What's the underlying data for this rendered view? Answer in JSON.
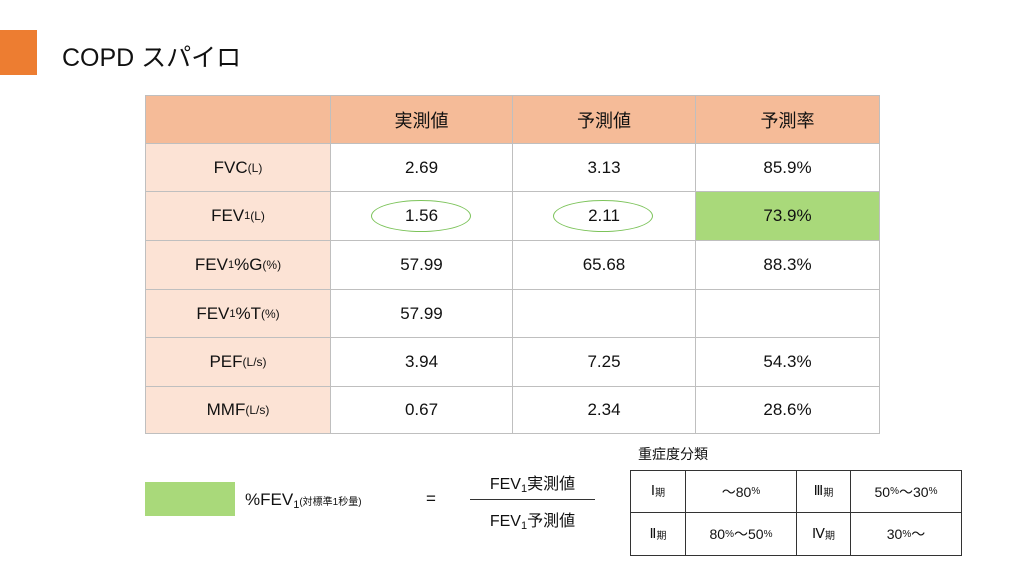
{
  "header": {
    "title": "COPD スパイロ"
  },
  "table": {
    "columns": [
      "実測値",
      "予測値",
      "予測率"
    ],
    "header_color": "#f5bb98",
    "label_color": "#fce3d5",
    "highlight_color": "#a9d97a",
    "circle_color": "#7cc35a",
    "rows": [
      {
        "name": "FVC",
        "unit": "(L)",
        "values": [
          "2.69",
          "3.13",
          "85.9%"
        ]
      },
      {
        "name": "FEV",
        "sub": "1",
        "unit": "(L)",
        "values": [
          "1.56",
          "2.11",
          "73.9%"
        ],
        "circled": [
          0,
          1
        ],
        "highlight": 2
      },
      {
        "name": "FEV",
        "sub": "1",
        "suffix": "%G",
        "unit": "(%)",
        "values": [
          "57.99",
          "65.68",
          "88.3%"
        ]
      },
      {
        "name": "FEV",
        "sub": "1",
        "suffix": "%T",
        "unit": "(%)",
        "values": [
          "57.99",
          null,
          null
        ]
      },
      {
        "name": "PEF",
        "unit": "(L/s)",
        "values": [
          "3.94",
          "7.25",
          "54.3%"
        ]
      },
      {
        "name": "MMF",
        "unit": "(L/s)",
        "values": [
          "0.67",
          "2.34",
          "28.6%"
        ]
      }
    ]
  },
  "legend": {
    "color": "#a9d97a",
    "label": "%FEV",
    "sub": "1",
    "note": "(対標準1秒量)"
  },
  "formula": {
    "equals": "=",
    "numerator": {
      "name": "FEV",
      "sub": "1",
      "text": "実測値"
    },
    "denominator": {
      "name": "FEV",
      "sub": "1",
      "text": "予測値"
    }
  },
  "severity": {
    "title": "重症度分類",
    "stages": [
      {
        "numeral": "Ⅰ",
        "label": "期",
        "range": [
          "～80",
          "%"
        ]
      },
      {
        "numeral": "Ⅱ",
        "label": "期",
        "range": [
          "80",
          "%",
          "～50",
          "%"
        ]
      },
      {
        "numeral": "Ⅲ",
        "label": "期",
        "range": [
          "50",
          "%",
          "～30",
          "%"
        ]
      },
      {
        "numeral": "Ⅳ",
        "label": "期",
        "range": [
          "30",
          "%",
          "～"
        ]
      }
    ]
  }
}
